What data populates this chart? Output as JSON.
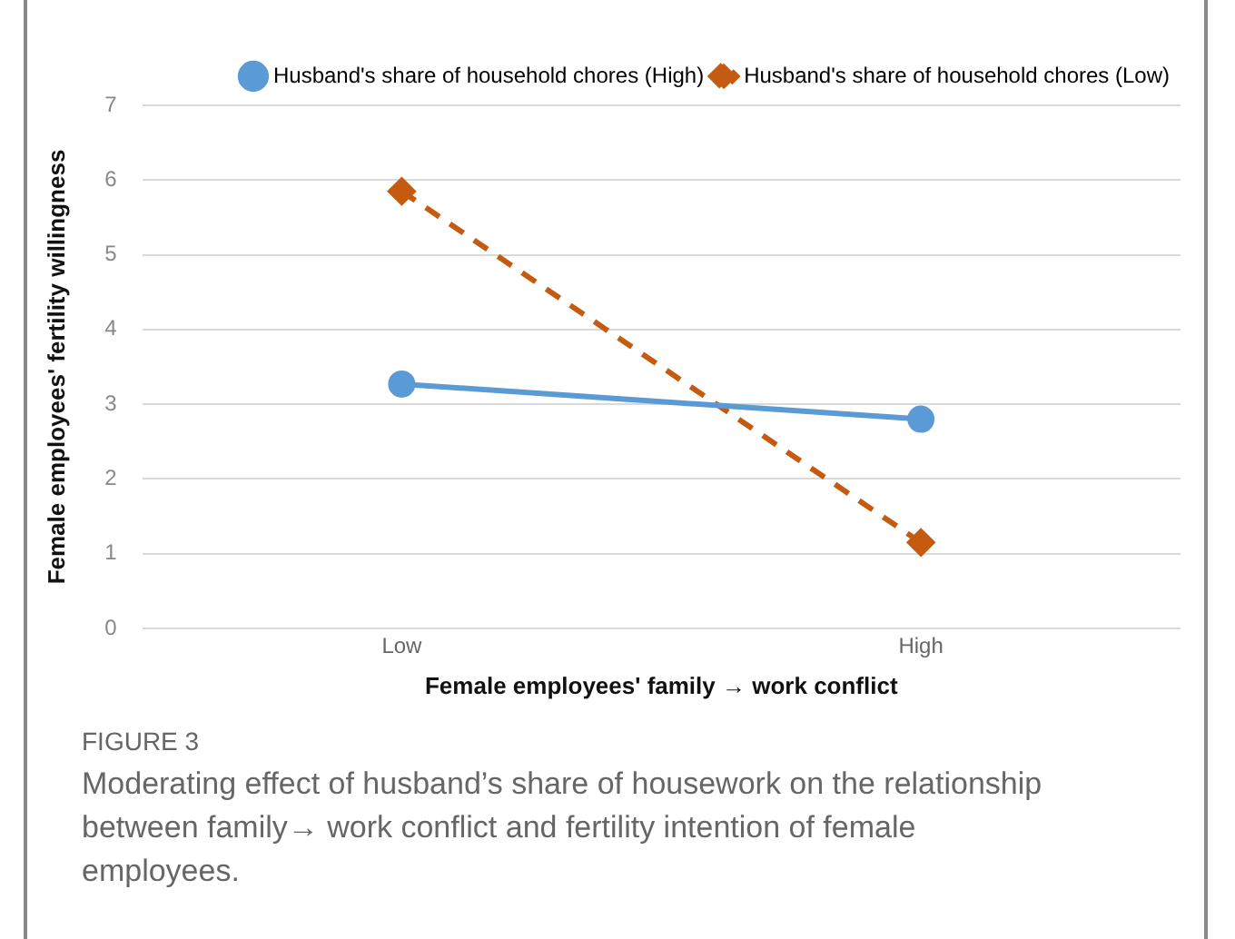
{
  "chart_data": {
    "type": "line",
    "xlabel": "Female employees' family → work conflict",
    "ylabel": "Female employees' fertility willingness",
    "categories": [
      "Low",
      "High"
    ],
    "series": [
      {
        "name": "Husband's share of household chores (High)",
        "color": "#5b9bd5",
        "values": [
          3.27,
          2.8
        ],
        "marker": "circle",
        "line_style": "solid"
      },
      {
        "name": "Husband's share of household chores (Low)",
        "color": "#c55a11",
        "values": [
          5.85,
          1.15
        ],
        "marker": "diamond",
        "line_style": "dashed"
      }
    ],
    "ylim": [
      0,
      7
    ],
    "yticks": [
      0,
      1,
      2,
      3,
      4,
      5,
      6,
      7
    ],
    "grid": "y",
    "legend": "top right",
    "annotations": [
      "FIGURE 3",
      "Moderating effect of husband’s share of housework on the relationship between family→ work conflict and fertility intention of female employees."
    ]
  }
}
